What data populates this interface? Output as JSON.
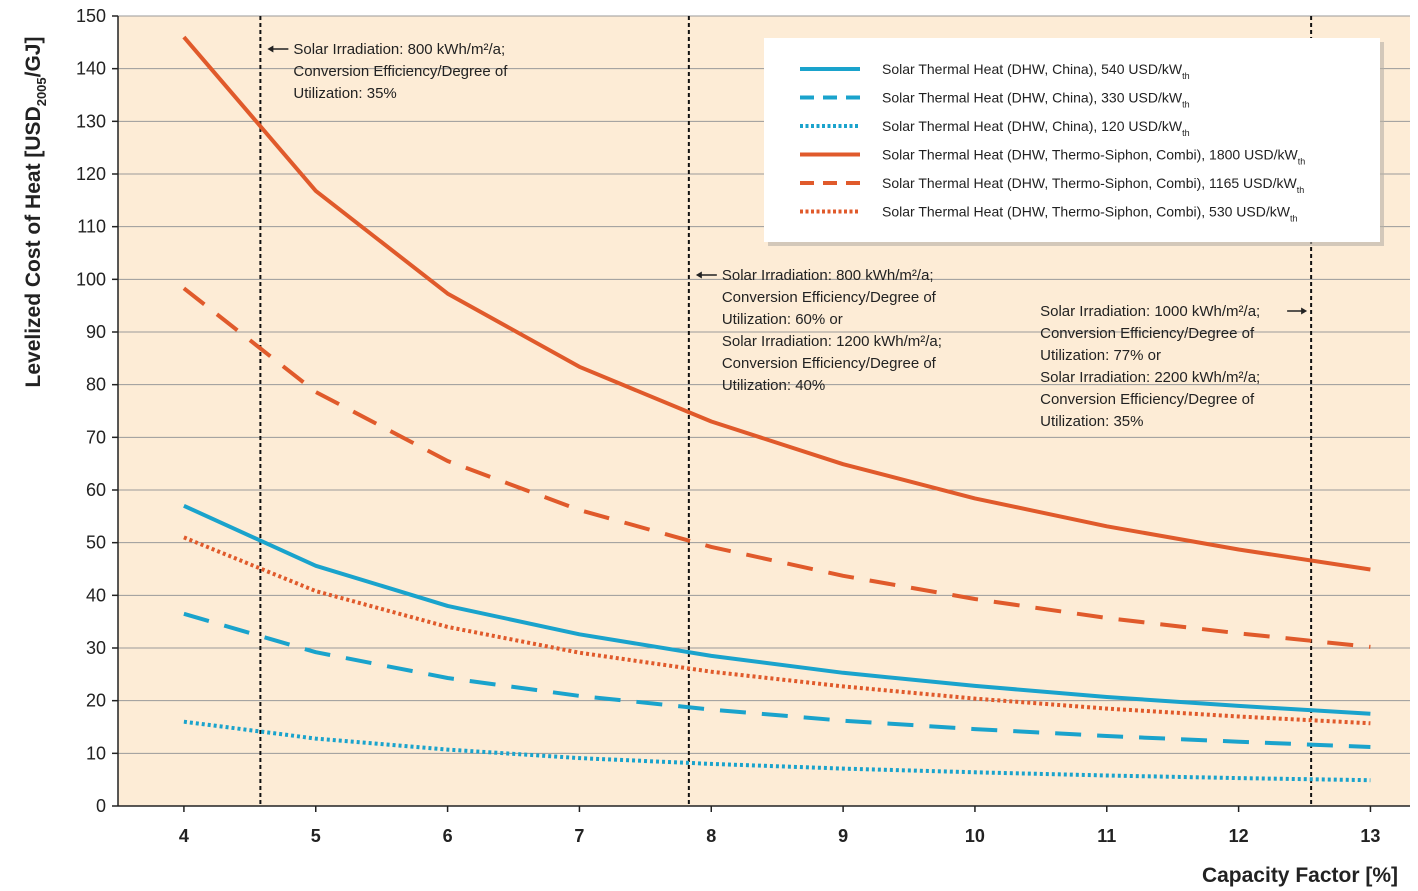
{
  "chart_data": {
    "type": "line",
    "xlabel": "Capacity Factor [%]",
    "ylabel": {
      "pre": "Levelized Cost of Heat [USD",
      "sub": "2005",
      "post": "/GJ]"
    },
    "xlim": [
      3.5,
      13.3
    ],
    "ylim": [
      0,
      150
    ],
    "xticks": [
      4,
      5,
      6,
      7,
      8,
      9,
      10,
      11,
      12,
      13
    ],
    "yticks": [
      0,
      10,
      20,
      30,
      40,
      50,
      60,
      70,
      80,
      90,
      100,
      110,
      120,
      130,
      140,
      150
    ],
    "grid": true,
    "legend_position": "top-right",
    "x": [
      4,
      5,
      6,
      7,
      8,
      9,
      10,
      11,
      12,
      13
    ],
    "series": [
      {
        "name": "Solar Thermal Heat (DHW, China), 540 USD/kW",
        "sub": "th",
        "color": "#1aa3cc",
        "dash": "solid",
        "values": [
          57,
          45.6,
          38.0,
          32.6,
          28.5,
          25.3,
          22.8,
          20.7,
          19.0,
          17.5
        ]
      },
      {
        "name": "Solar Thermal Heat (DHW, China), 330 USD/kW",
        "sub": "th",
        "color": "#1aa3cc",
        "dash": "dashed",
        "values": [
          36.5,
          29.2,
          24.3,
          20.9,
          18.3,
          16.2,
          14.6,
          13.3,
          12.2,
          11.2
        ]
      },
      {
        "name": "Solar Thermal Heat (DHW, China), 120 USD/kW",
        "sub": "th",
        "color": "#1aa3cc",
        "dash": "dotted",
        "values": [
          16,
          12.8,
          10.7,
          9.1,
          8.0,
          7.1,
          6.4,
          5.8,
          5.3,
          4.9
        ]
      },
      {
        "name": "Solar Thermal Heat (DHW, Thermo-Siphon, Combi), 1800 USD/kW",
        "sub": "th",
        "color": "#e05a2b",
        "dash": "solid",
        "values": [
          146,
          116.8,
          97.3,
          83.4,
          73.0,
          64.9,
          58.4,
          53.1,
          48.7,
          44.9
        ]
      },
      {
        "name": "Solar Thermal Heat (DHW, Thermo-Siphon, Combi), 1165 USD/kW",
        "sub": "th",
        "color": "#e05a2b",
        "dash": "dashed",
        "values": [
          98.3,
          78.6,
          65.5,
          56.2,
          49.2,
          43.7,
          39.3,
          35.7,
          32.8,
          30.2
        ]
      },
      {
        "name": "Solar Thermal Heat (DHW, Thermo-Siphon, Combi), 530 USD/kW",
        "sub": "th",
        "color": "#e05a2b",
        "dash": "dotted",
        "values": [
          51,
          40.8,
          34.0,
          29.1,
          25.5,
          22.7,
          20.4,
          18.5,
          17.0,
          15.7
        ]
      }
    ],
    "reference_lines": [
      {
        "x": 4.58,
        "arrow": "left",
        "lines": [
          "Solar Irradiation: 800 kWh/m²/a;",
          "Conversion Efficiency/Degree of",
          "Utilization: 35%"
        ]
      },
      {
        "x": 7.83,
        "arrow": "left",
        "lines": [
          "Solar Irradiation: 800 kWh/m²/a;",
          "Conversion Efficiency/Degree of",
          "Utilization: 60% or",
          "Solar Irradiation: 1200 kWh/m²/a;",
          "Conversion Efficiency/Degree of",
          "Utilization: 40%"
        ]
      },
      {
        "x": 12.55,
        "arrow": "right",
        "lines": [
          "Solar Irradiation: 1000 kWh/m²/a;",
          "Conversion Efficiency/Degree of",
          "Utilization: 77% or",
          "Solar Irradiation: 2200 kWh/m²/a;",
          "Conversion Efficiency/Degree of",
          "Utilization: 35%"
        ]
      }
    ],
    "colors": {
      "plot_background": "#fdecd6",
      "grid": "#9a9a9a",
      "axis": "#222222",
      "reference_line": "#111111"
    }
  }
}
